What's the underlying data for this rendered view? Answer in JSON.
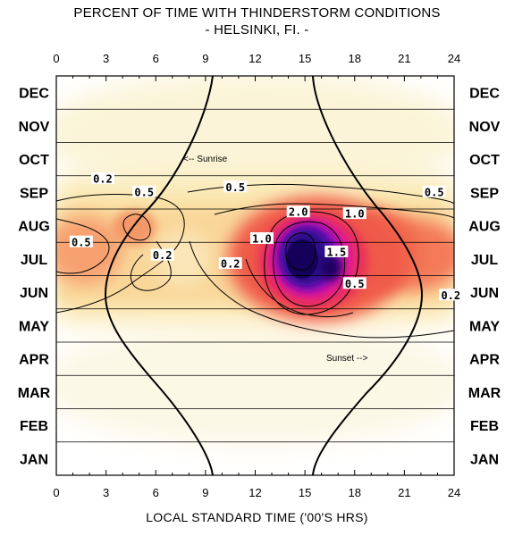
{
  "title": "PERCENT OF TIME WITH THINDERSTORM CONDITIONS",
  "subtitle": "- HELSINKI, FI. -",
  "chart_data": {
    "type": "heatmap",
    "title": "PERCENT OF TIME WITH THINDERSTORM CONDITIONS",
    "subtitle": "- HELSINKI, FI. -",
    "xlabel": "LOCAL STANDARD TIME ('00'S HRS)",
    "ylabel": "",
    "xlim": [
      0,
      24
    ],
    "x_ticks": [
      "0",
      "3",
      "6",
      "9",
      "12",
      "15",
      "18",
      "21",
      "24"
    ],
    "y_categories": [
      "JAN",
      "FEB",
      "MAR",
      "APR",
      "MAY",
      "JUN",
      "JUL",
      "AUG",
      "SEP",
      "OCT",
      "NOV",
      "DEC"
    ],
    "contour_levels": [
      0.2,
      0.5,
      1.0,
      1.5,
      2.0
    ],
    "contour_labels": [
      {
        "text": "0.2",
        "hour": 2.8,
        "month": 8.4
      },
      {
        "text": "0.5",
        "hour": 5.3,
        "month": 8.0
      },
      {
        "text": "0.5",
        "hour": 1.5,
        "month": 6.5
      },
      {
        "text": "0.2",
        "hour": 6.4,
        "month": 6.1
      },
      {
        "text": "0.5",
        "hour": 10.8,
        "month": 8.15
      },
      {
        "text": "0.2",
        "hour": 10.5,
        "month": 5.85
      },
      {
        "text": "1.0",
        "hour": 12.4,
        "month": 6.6
      },
      {
        "text": "2.0",
        "hour": 14.6,
        "month": 7.4
      },
      {
        "text": "1.5",
        "hour": 16.9,
        "month": 6.2
      },
      {
        "text": "1.0",
        "hour": 18.0,
        "month": 7.35
      },
      {
        "text": "0.5",
        "hour": 18.0,
        "month": 5.25
      },
      {
        "text": "0.5",
        "hour": 22.8,
        "month": 8.0
      },
      {
        "text": "0.2",
        "hour": 23.8,
        "month": 4.9
      }
    ],
    "peak": {
      "hour": 14.5,
      "month": "JUL",
      "value": 2.0
    },
    "annotations": [
      "<-- Sunrise",
      "Sunset -->"
    ],
    "colors": {
      "low": "#fdf6c8",
      "mid": "#f07a50",
      "high": "#e0109a",
      "peak": "#1a0060"
    },
    "grid": true
  }
}
